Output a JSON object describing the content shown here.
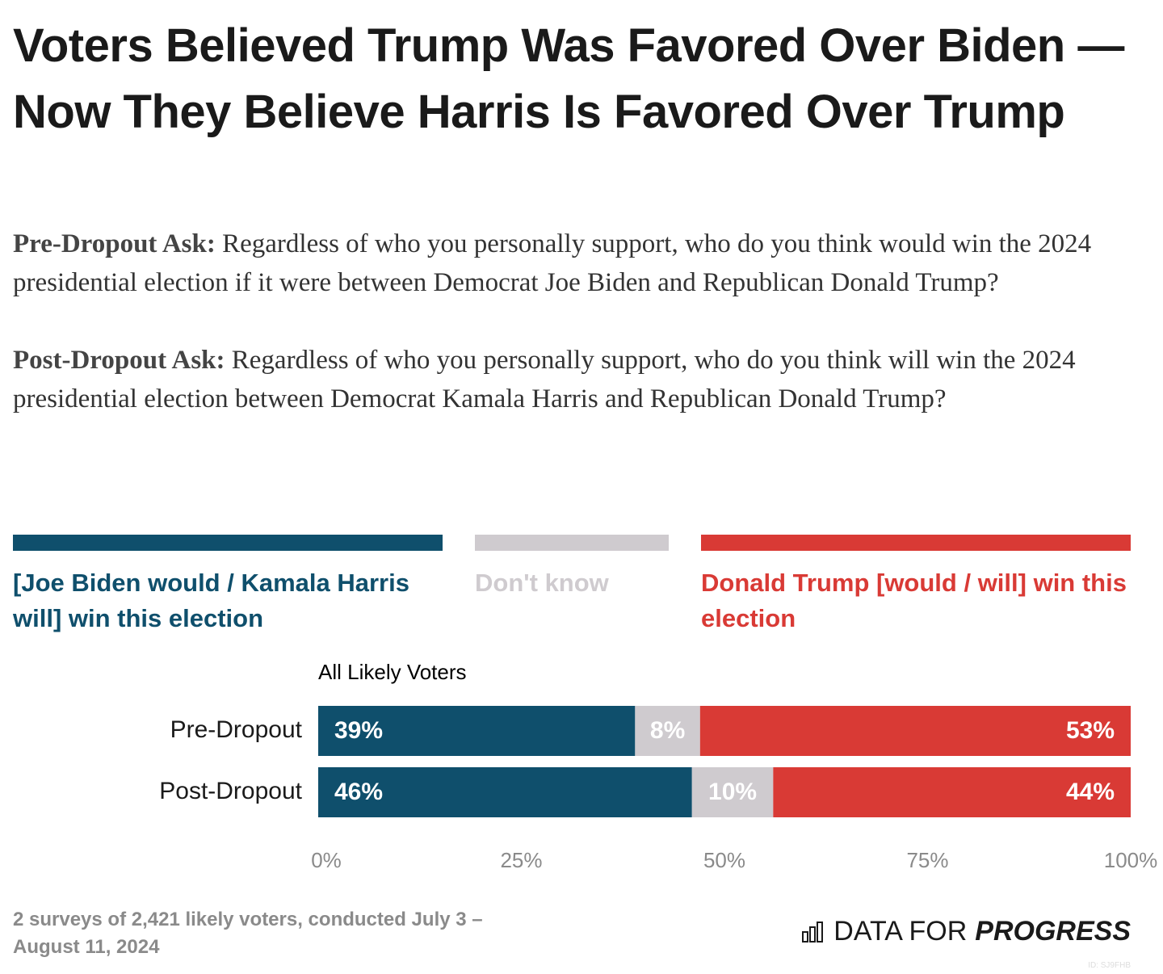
{
  "chart_data": {
    "type": "bar",
    "stacked": true,
    "title": "Voters Believed Trump Was Favored Over Biden — Now They Believe Harris Is Favored Over Trump",
    "subtitles": [
      {
        "label": "Pre-Dropout Ask:",
        "text": "Regardless of who you personally support, who do you think would win the 2024 presidential election if it were between Democrat Joe Biden and Republican Donald Trump?"
      },
      {
        "label": "Post-Dropout Ask:",
        "text": "Regardless of who you personally support, who do you think will win the 2024 presidential election between Democrat Kamala Harris and Republican Donald Trump?"
      }
    ],
    "group_label": "All Likely Voters",
    "categories": [
      "Pre-Dropout",
      "Post-Dropout"
    ],
    "series": [
      {
        "name": "[Joe Biden would / Kamala Harris will] win this election",
        "color": "#0f4f6c",
        "values": [
          39,
          46
        ],
        "value_labels": [
          "39%",
          "46%"
        ]
      },
      {
        "name": "Don't know",
        "color": "#cfcbcf",
        "values": [
          8,
          10
        ],
        "value_labels": [
          "8%",
          "10%"
        ]
      },
      {
        "name": "Donald Trump [would / will] win this election",
        "color": "#d93a35",
        "values": [
          53,
          44
        ],
        "value_labels": [
          "53%",
          "44%"
        ]
      }
    ],
    "xlim": [
      0,
      100
    ],
    "xticks": [
      {
        "value": 0,
        "label": "0%"
      },
      {
        "value": 25,
        "label": "25%"
      },
      {
        "value": 50,
        "label": "50%"
      },
      {
        "value": 75,
        "label": "75%"
      },
      {
        "value": 100,
        "label": "100%"
      }
    ],
    "note": "2 surveys of 2,421 likely voters, conducted July 3 – August 11, 2024",
    "brand": {
      "light": "DATA FOR",
      "bold": "PROGRESS"
    },
    "id": "ID: SJ9FHB"
  }
}
